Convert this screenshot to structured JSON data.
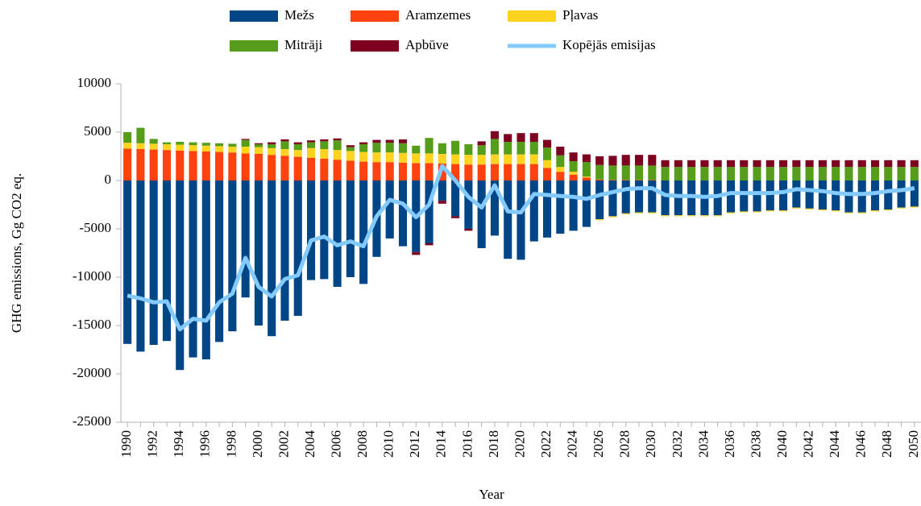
{
  "chart_data": {
    "type": "bar",
    "stacked": true,
    "x_label": "Year",
    "y_label": "GHG emissions, Gg CO2 eq.",
    "categories": [
      "1990",
      null,
      "1992",
      null,
      "1994",
      null,
      "1996",
      null,
      "1998",
      null,
      "2000",
      null,
      "2002",
      null,
      "2004",
      null,
      "2006",
      null,
      "2008",
      null,
      "2010",
      null,
      "2012",
      null,
      "2014",
      null,
      "2016",
      null,
      "2018",
      null,
      "2020",
      null,
      "2022",
      null,
      "2024",
      null,
      "2026",
      null,
      "2028",
      null,
      "2030",
      null,
      "2032",
      null,
      "2034",
      null,
      "2036",
      null,
      "2038",
      null,
      "2040",
      null,
      "2042",
      null,
      "2044",
      null,
      "2046",
      null,
      "2048",
      null,
      "2050"
    ],
    "ylim": [
      -25000,
      10000
    ],
    "yticks": [
      -25000,
      -20000,
      -15000,
      -10000,
      -5000,
      0,
      5000,
      10000
    ],
    "grid": false,
    "legend": "top",
    "series": [
      {
        "name": "Mežs",
        "color": "#004586",
        "values": [
          -16900,
          -17700,
          -17000,
          -16600,
          -19600,
          -18300,
          -18500,
          -16700,
          -15600,
          -12100,
          -15000,
          -16100,
          -14500,
          -14000,
          -10300,
          -10200,
          -11000,
          -10000,
          -10700,
          -7900,
          -6000,
          -6800,
          -7400,
          -6500,
          -2100,
          -3700,
          -5000,
          -7000,
          -5700,
          -8100,
          -8200,
          -6300,
          -5900,
          -5500,
          -5200,
          -4800,
          -4000,
          -3700,
          -3400,
          -3300,
          -3300,
          -3600,
          -3600,
          -3600,
          -3600,
          -3600,
          -3300,
          -3200,
          -3200,
          -3100,
          -3100,
          -2800,
          -2900,
          -3000,
          -3100,
          -3300,
          -3300,
          -3100,
          -3000,
          -2800,
          -2700
        ]
      },
      {
        "name": "Aramzemes",
        "color": "#ff420e",
        "values": [
          3300,
          3250,
          3200,
          3150,
          3100,
          3050,
          3000,
          2950,
          2900,
          2800,
          2750,
          2650,
          2550,
          2450,
          2350,
          2250,
          2150,
          2050,
          1950,
          1900,
          1900,
          1850,
          1800,
          1800,
          1750,
          1700,
          1650,
          1650,
          1700,
          1700,
          1700,
          1700,
          1300,
          900,
          600,
          300,
          100,
          50,
          50,
          50,
          50,
          0,
          0,
          0,
          0,
          0,
          0,
          0,
          0,
          0,
          0,
          0,
          0,
          0,
          0,
          0,
          0,
          0,
          0,
          0,
          0
        ]
      },
      {
        "name": "Pļavas",
        "color": "#ffd320",
        "values": [
          600,
          600,
          600,
          600,
          600,
          600,
          600,
          600,
          600,
          700,
          700,
          700,
          700,
          700,
          1000,
          1000,
          1000,
          1000,
          1000,
          1000,
          1000,
          1000,
          1000,
          1000,
          1000,
          1000,
          1000,
          1000,
          1000,
          1000,
          1000,
          1000,
          800,
          500,
          300,
          100,
          -100,
          -100,
          -100,
          -100,
          -100,
          -100,
          -100,
          -100,
          -100,
          -100,
          -100,
          -100,
          -100,
          -100,
          -100,
          -100,
          -100,
          -100,
          -100,
          -100,
          -100,
          -100,
          -100,
          -100,
          -100
        ]
      },
      {
        "name": "Mitrāji",
        "color": "#579d1c",
        "values": [
          1100,
          1600,
          500,
          200,
          300,
          300,
          300,
          300,
          300,
          700,
          300,
          400,
          800,
          600,
          600,
          800,
          1000,
          400,
          800,
          1000,
          1000,
          1000,
          800,
          1600,
          1100,
          1400,
          1100,
          1000,
          1600,
          1300,
          1300,
          1300,
          1300,
          1200,
          1100,
          1500,
          1500,
          1500,
          1500,
          1500,
          1500,
          1400,
          1400,
          1400,
          1400,
          1400,
          1400,
          1400,
          1400,
          1400,
          1400,
          1400,
          1400,
          1400,
          1400,
          1400,
          1400,
          1400,
          1400,
          1400,
          1400
        ]
      },
      {
        "name": "Apbūve",
        "color": "#7e0021",
        "values": [
          0,
          0,
          0,
          0,
          0,
          0,
          0,
          0,
          0,
          100,
          100,
          200,
          200,
          200,
          200,
          200,
          200,
          200,
          200,
          300,
          300,
          400,
          -300,
          -200,
          -300,
          -200,
          -200,
          400,
          800,
          800,
          900,
          900,
          800,
          900,
          900,
          800,
          900,
          1000,
          1100,
          1100,
          1100,
          700,
          700,
          700,
          700,
          700,
          700,
          700,
          700,
          700,
          700,
          700,
          700,
          700,
          700,
          700,
          700,
          700,
          700,
          700,
          700
        ]
      },
      {
        "name": "Kopējās emisijas",
        "color": "#83caff",
        "type": "line",
        "values": [
          -11900,
          -12200,
          -12600,
          -12500,
          -15400,
          -14300,
          -14500,
          -12600,
          -11700,
          -8000,
          -11000,
          -12000,
          -10200,
          -9800,
          -6200,
          -5800,
          -6700,
          -6300,
          -6800,
          -3700,
          -2000,
          -2400,
          -3800,
          -2500,
          1500,
          0,
          -1700,
          -2800,
          -500,
          -3200,
          -3300,
          -1400,
          -1500,
          -1600,
          -1700,
          -1900,
          -1500,
          -1200,
          -900,
          -800,
          -800,
          -1500,
          -1600,
          -1600,
          -1700,
          -1600,
          -1300,
          -1300,
          -1300,
          -1300,
          -1200,
          -900,
          -1000,
          -1100,
          -1300,
          -1400,
          -1400,
          -1300,
          -1100,
          -1000,
          -800
        ]
      }
    ]
  }
}
